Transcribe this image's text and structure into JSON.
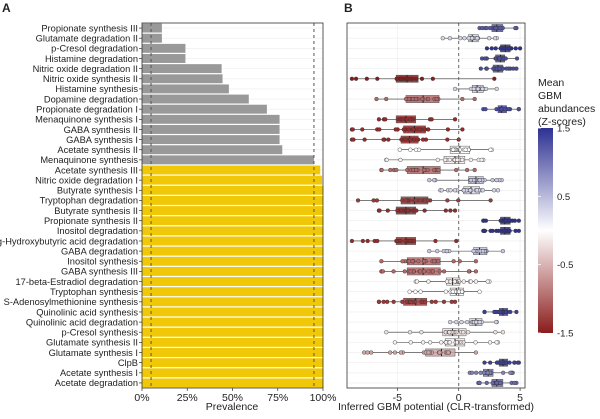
{
  "chart_data": [
    {
      "panel_label": "A",
      "type": "bar",
      "orientation": "horizontal",
      "xlabel": "Prevalence",
      "ylabel": "",
      "xlim": [
        0,
        100
      ],
      "x_ticks": [
        "0%",
        "25%",
        "50%",
        "75%",
        "100%"
      ],
      "reference_lines_dashed": [
        5,
        95
      ],
      "colors": {
        "default": "#999999",
        "highlighted": "#f0c808"
      },
      "categories": [
        "Propionate synthesis III",
        "Glutamate degradation II",
        "p-Cresol degradation",
        "Histamine degradation",
        "Nitric oxide degradation II",
        "Nitric oxide synthesis II",
        "Histamine synthesis",
        "Dopamine degradation",
        "Propionate degradation I",
        "Menaquinone synthesis I",
        "GABA synthesis II",
        "GABA synthesis I",
        "Acetate synthesis II",
        "Menaquinone synthesis",
        "Acetate synthesis III",
        "Nitric oxide degradation I",
        "Butyrate synthesis I",
        "Tryptophan degradation",
        "Butyrate synthesis II",
        "Propionate synthesis II",
        "Inositol degradation",
        "g-Hydroxybutyric acid degradation",
        "GABA degradation",
        "Inositol synthesis",
        "GABA synthesis III",
        "17-beta-Estradiol degradation",
        "Tryptophan synthesis",
        "S-Adenosylmethionine synthesis",
        "Quinolinic acid synthesis",
        "Quinolinic acid degradation",
        "p-Cresol synthesis",
        "Glutamate synthesis II",
        "Glutamate synthesis I",
        "ClpB",
        "Acetate synthesis I",
        "Acetate degradation"
      ],
      "values": [
        11,
        11,
        24,
        24,
        44,
        44.5,
        48,
        59,
        69,
        76,
        76,
        76,
        77.5,
        95,
        98.5,
        99.5,
        100,
        100,
        100,
        100,
        100,
        100,
        100,
        100,
        100,
        100,
        100,
        100,
        100,
        100,
        100,
        100,
        100,
        100,
        100,
        100
      ],
      "highlighted": [
        false,
        false,
        false,
        false,
        false,
        false,
        false,
        false,
        false,
        false,
        false,
        false,
        false,
        false,
        true,
        true,
        true,
        true,
        true,
        true,
        true,
        true,
        true,
        true,
        true,
        true,
        true,
        true,
        true,
        true,
        true,
        true,
        true,
        true,
        true,
        true
      ]
    },
    {
      "panel_label": "B",
      "type": "box",
      "orientation": "horizontal",
      "xlabel": "Inferred GBM potential (CLR-transformed)",
      "xlim": [
        -9.1,
        5.4
      ],
      "x_ticks": [
        -5,
        0,
        5
      ],
      "reference_line_dashed": 0,
      "legend": {
        "title": "Mean GBM abundances (Z-scores)",
        "title_lines": [
          "Mean",
          "GBM",
          "abundances",
          "(Z-scores)"
        ],
        "ticks": [
          "1.5",
          "0.5",
          "-0.5",
          "-1.5"
        ],
        "range": [
          -1.5,
          1.5
        ],
        "colors": {
          "low": "#8b1c1c",
          "mid": "#ffffff",
          "high": "#2e3192"
        },
        "placement": "right"
      },
      "boxes": [
        {
          "min": 1.7,
          "q1": 2.7,
          "median": 3.1,
          "q3": 3.6,
          "max": 4.7,
          "z": 1.2
        },
        {
          "min": -1.3,
          "q1": 0.8,
          "median": 1.1,
          "q3": 1.6,
          "max": 3.1,
          "z": 0.3
        },
        {
          "min": 2.3,
          "q1": 3.4,
          "median": 3.8,
          "q3": 4.2,
          "max": 5.0,
          "z": 1.5
        },
        {
          "min": 1.9,
          "q1": 3.0,
          "median": 3.4,
          "q3": 3.75,
          "max": 4.75,
          "z": 1.3
        },
        {
          "min": 1.8,
          "q1": 2.8,
          "median": 3.2,
          "q3": 3.6,
          "max": 4.7,
          "z": 1.3
        },
        {
          "min": -8.7,
          "q1": -5.1,
          "median": -4.2,
          "q3": -3.3,
          "max": 2.9,
          "z": -1.5
        },
        {
          "min": -0.3,
          "q1": 1.1,
          "median": 1.5,
          "q3": 2.0,
          "max": 3.1,
          "z": 0.3
        },
        {
          "min": -6.7,
          "q1": -4.3,
          "median": -2.9,
          "q3": -1.6,
          "max": 1.3,
          "z": -1.0
        },
        {
          "min": 2.0,
          "q1": 3.2,
          "median": 3.5,
          "q3": 3.9,
          "max": 4.9,
          "z": 1.3
        },
        {
          "min": -6.5,
          "q1": -5.1,
          "median": -4.3,
          "q3": -3.5,
          "max": -0.3,
          "z": -1.4
        },
        {
          "min": -8.7,
          "q1": -4.5,
          "median": -3.6,
          "q3": -2.7,
          "max": 0.3,
          "z": -1.4
        },
        {
          "min": -8.7,
          "q1": -4.7,
          "median": -4.0,
          "q3": -3.3,
          "max": 0.0,
          "z": -1.4
        },
        {
          "min": -4.8,
          "q1": -0.7,
          "median": 0.1,
          "q3": 0.9,
          "max": 2.7,
          "z": 0.0
        },
        {
          "min": -5.9,
          "q1": -1.2,
          "median": -0.3,
          "q3": 0.5,
          "max": 2.0,
          "z": -0.1
        },
        {
          "min": -6.3,
          "q1": -4.2,
          "median": -2.9,
          "q3": -1.5,
          "max": 1.3,
          "z": -1.0
        },
        {
          "min": -2.4,
          "q1": 0.8,
          "median": 1.4,
          "q3": 2.0,
          "max": 3.5,
          "z": 0.4
        },
        {
          "min": -1.5,
          "q1": 0.4,
          "median": 1.0,
          "q3": 1.7,
          "max": 3.2,
          "z": 0.3
        },
        {
          "min": -8.2,
          "q1": -4.7,
          "median": -3.6,
          "q3": -2.5,
          "max": 2.6,
          "z": -1.3
        },
        {
          "min": -6.5,
          "q1": -5.1,
          "median": -4.3,
          "q3": -3.5,
          "max": -0.3,
          "z": -1.4
        },
        {
          "min": 2.0,
          "q1": 3.4,
          "median": 3.75,
          "q3": 4.2,
          "max": 4.9,
          "z": 1.5
        },
        {
          "min": 2.0,
          "q1": 3.4,
          "median": 3.75,
          "q3": 4.2,
          "max": 4.9,
          "z": 1.5
        },
        {
          "min": -8.7,
          "q1": -5.1,
          "median": -4.3,
          "q3": -3.5,
          "max": -0.2,
          "z": -1.4
        },
        {
          "min": -2.4,
          "q1": 1.2,
          "median": 1.7,
          "q3": 2.3,
          "max": 3.6,
          "z": 0.4
        },
        {
          "min": -6.3,
          "q1": -4.2,
          "median": -2.9,
          "q3": -1.5,
          "max": 1.4,
          "z": -1.0
        },
        {
          "min": -6.3,
          "q1": -4.2,
          "median": -2.9,
          "q3": -1.5,
          "max": 1.4,
          "z": -1.0
        },
        {
          "min": -3.5,
          "q1": -1.0,
          "median": -0.5,
          "q3": 0.1,
          "max": 2.5,
          "z": -0.1
        },
        {
          "min": -4.0,
          "q1": -0.7,
          "median": -0.2,
          "q3": 0.4,
          "max": 1.7,
          "z": 0.0
        },
        {
          "min": -6.5,
          "q1": -4.5,
          "median": -3.5,
          "q3": -2.6,
          "max": -0.3,
          "z": -1.3
        },
        {
          "min": 2.1,
          "q1": 3.3,
          "median": 3.6,
          "q3": 4.0,
          "max": 4.7,
          "z": 1.4
        },
        {
          "min": -0.7,
          "q1": 0.9,
          "median": 1.4,
          "q3": 1.9,
          "max": 3.1,
          "z": 0.3
        },
        {
          "min": -5.9,
          "q1": -1.3,
          "median": -0.5,
          "q3": 0.6,
          "max": 3.6,
          "z": -0.2
        },
        {
          "min": -5.2,
          "q1": -1.1,
          "median": -0.3,
          "q3": 0.5,
          "max": 3.2,
          "z": -0.1
        },
        {
          "min": -7.7,
          "q1": -2.7,
          "median": -1.4,
          "q3": -0.3,
          "max": 1.4,
          "z": -0.6
        },
        {
          "min": 2.1,
          "q1": 3.3,
          "median": 3.6,
          "q3": 4.0,
          "max": 4.9,
          "z": 1.4
        },
        {
          "min": 0.9,
          "q1": 2.0,
          "median": 2.4,
          "q3": 2.8,
          "max": 4.4,
          "z": 0.9
        },
        {
          "min": 1.6,
          "q1": 2.7,
          "median": 3.1,
          "q3": 3.6,
          "max": 4.7,
          "z": 1.1
        }
      ]
    }
  ]
}
